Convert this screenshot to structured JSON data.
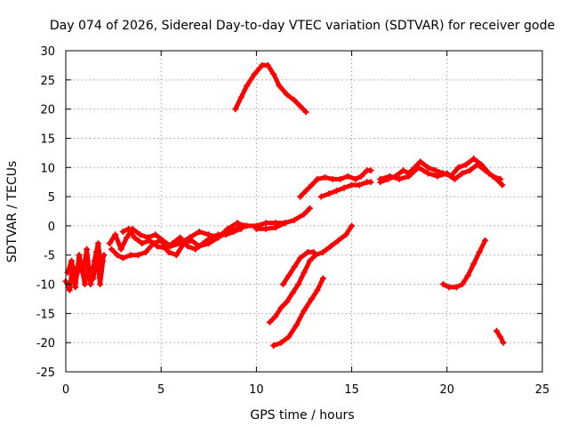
{
  "chart_data": {
    "type": "line",
    "title": "Day 074 of 2026, Sidereal Day-to-day VTEC variation (SDTVAR) for receiver gode",
    "xlabel": "GPS time / hours",
    "ylabel": "SDTVAR / TECUs",
    "xlim": [
      0,
      25
    ],
    "ylim": [
      -25,
      30
    ],
    "xticks": [
      0,
      5,
      10,
      15,
      20,
      25
    ],
    "yticks": [
      -25,
      -20,
      -15,
      -10,
      -5,
      0,
      5,
      10,
      15,
      20,
      25,
      30
    ],
    "grid": true,
    "legend": "none",
    "color": "#ff0000",
    "marker": "plus",
    "series": [
      {
        "points": [
          [
            0.0,
            -9.5
          ],
          [
            0.2,
            -11
          ],
          [
            0.35,
            -7
          ],
          [
            0.5,
            -10.5
          ],
          [
            0.7,
            -5
          ],
          [
            0.9,
            -8
          ],
          [
            1.1,
            -4
          ],
          [
            1.3,
            -10
          ],
          [
            1.5,
            -6
          ],
          [
            1.7,
            -3
          ],
          [
            1.85,
            -7
          ],
          [
            2.0,
            -5
          ]
        ]
      },
      {
        "points": [
          [
            0.1,
            -8
          ],
          [
            0.3,
            -6
          ],
          [
            0.5,
            -9
          ],
          [
            0.8,
            -6.5
          ],
          [
            1.0,
            -10
          ],
          [
            1.2,
            -7
          ],
          [
            1.45,
            -9
          ],
          [
            1.6,
            -4.5
          ],
          [
            1.8,
            -10
          ],
          [
            1.95,
            -6
          ]
        ]
      },
      {
        "points": [
          [
            2.3,
            -3
          ],
          [
            2.6,
            -1.5
          ],
          [
            2.9,
            -4
          ],
          [
            3.2,
            -2
          ],
          [
            3.5,
            -0.5
          ],
          [
            3.9,
            -1.5
          ],
          [
            4.3,
            -2
          ],
          [
            4.7,
            -1.5
          ],
          [
            5.1,
            -2.5
          ],
          [
            5.5,
            -3.5
          ],
          [
            6.0,
            -3
          ],
          [
            6.5,
            -2
          ],
          [
            7.0,
            -1
          ],
          [
            7.5,
            -1.5
          ],
          [
            8.0,
            -2
          ],
          [
            8.5,
            -1
          ],
          [
            9.0,
            -0.5
          ],
          [
            9.5,
            0
          ],
          [
            10.0,
            0
          ],
          [
            10.5,
            0.5
          ],
          [
            11.0,
            0.5
          ],
          [
            11.5,
            0.5
          ]
        ]
      },
      {
        "points": [
          [
            2.4,
            -4
          ],
          [
            2.7,
            -5
          ],
          [
            3.0,
            -5.5
          ],
          [
            3.4,
            -5
          ],
          [
            3.8,
            -5
          ],
          [
            4.2,
            -4.5
          ],
          [
            4.6,
            -3
          ],
          [
            5.0,
            -2.5
          ],
          [
            5.4,
            -4.5
          ],
          [
            5.8,
            -5
          ],
          [
            6.2,
            -3
          ],
          [
            6.6,
            -2.5
          ],
          [
            7.0,
            -3.5
          ],
          [
            7.5,
            -3
          ],
          [
            8.0,
            -2
          ],
          [
            8.5,
            -0.5
          ],
          [
            9.0,
            0.5
          ],
          [
            9.4,
            0
          ]
        ]
      },
      {
        "points": [
          [
            3.0,
            -1
          ],
          [
            3.3,
            -0.5
          ],
          [
            3.6,
            -2
          ],
          [
            4.0,
            -3
          ],
          [
            4.4,
            -2.5
          ],
          [
            4.8,
            -3.5
          ],
          [
            5.2,
            -3.8
          ],
          [
            5.6,
            -3
          ],
          [
            6.0,
            -2
          ],
          [
            6.4,
            -3.5
          ],
          [
            6.8,
            -4
          ],
          [
            7.2,
            -3
          ],
          [
            7.6,
            -2
          ],
          [
            8.0,
            -1.5
          ],
          [
            8.4,
            -1.5
          ],
          [
            8.8,
            -1
          ],
          [
            9.2,
            -0.5
          ]
        ]
      },
      {
        "points": [
          [
            10.0,
            -0.5
          ],
          [
            10.5,
            -0.5
          ],
          [
            11.0,
            -0.3
          ],
          [
            11.5,
            0.5
          ],
          [
            12.0,
            1
          ],
          [
            12.5,
            2
          ],
          [
            12.8,
            3
          ]
        ]
      },
      {
        "points": [
          [
            8.9,
            20
          ],
          [
            9.2,
            22
          ],
          [
            9.5,
            24
          ],
          [
            9.9,
            26
          ],
          [
            10.3,
            27.5
          ],
          [
            10.6,
            27.5
          ],
          [
            10.9,
            26
          ],
          [
            11.2,
            24
          ],
          [
            11.6,
            22.5
          ],
          [
            12.0,
            21.5
          ],
          [
            12.3,
            20.5
          ],
          [
            12.6,
            19.5
          ]
        ]
      },
      {
        "points": [
          [
            12.3,
            5
          ],
          [
            12.6,
            6
          ],
          [
            12.9,
            7
          ],
          [
            13.2,
            8
          ],
          [
            13.6,
            8.3
          ],
          [
            14.0,
            8
          ],
          [
            14.4,
            8
          ],
          [
            14.8,
            8.5
          ],
          [
            15.2,
            8
          ],
          [
            15.5,
            8.5
          ],
          [
            15.8,
            9.5
          ],
          [
            16.0,
            9.5
          ]
        ]
      },
      {
        "points": [
          [
            13.4,
            5
          ],
          [
            13.8,
            5.5
          ],
          [
            14.2,
            6
          ],
          [
            14.6,
            6.5
          ],
          [
            15.0,
            7
          ],
          [
            15.4,
            7
          ],
          [
            15.8,
            7.5
          ],
          [
            16.0,
            7.5
          ]
        ]
      },
      {
        "points": [
          [
            16.5,
            7.5
          ],
          [
            16.9,
            8
          ],
          [
            17.3,
            8.5
          ],
          [
            17.7,
            9.5
          ],
          [
            18.0,
            9
          ],
          [
            18.3,
            10
          ],
          [
            18.6,
            11
          ],
          [
            19.0,
            10
          ],
          [
            19.4,
            9.5
          ],
          [
            19.8,
            9
          ],
          [
            20.2,
            8.5
          ],
          [
            20.6,
            10
          ],
          [
            21.0,
            10.5
          ],
          [
            21.4,
            11.5
          ],
          [
            21.8,
            10.5
          ],
          [
            22.2,
            9
          ],
          [
            22.6,
            8
          ],
          [
            22.9,
            7
          ]
        ]
      },
      {
        "points": [
          [
            16.5,
            8
          ],
          [
            17.0,
            8.5
          ],
          [
            17.5,
            8
          ],
          [
            18.0,
            8.5
          ],
          [
            18.5,
            10
          ],
          [
            19.0,
            9
          ],
          [
            19.5,
            8.5
          ],
          [
            20.0,
            9
          ],
          [
            20.4,
            8
          ],
          [
            20.8,
            9
          ],
          [
            21.2,
            9.5
          ],
          [
            21.6,
            10.5
          ],
          [
            22.0,
            9.5
          ],
          [
            22.4,
            8.5
          ],
          [
            22.8,
            8
          ]
        ]
      },
      {
        "points": [
          [
            10.7,
            -16.5
          ],
          [
            11.0,
            -15.5
          ],
          [
            11.3,
            -14
          ],
          [
            11.6,
            -13
          ],
          [
            11.9,
            -11.5
          ],
          [
            12.2,
            -10
          ],
          [
            12.5,
            -8
          ],
          [
            12.8,
            -6
          ],
          [
            13.1,
            -5
          ],
          [
            13.5,
            -4.5
          ],
          [
            13.9,
            -3.5
          ],
          [
            14.3,
            -2.5
          ],
          [
            14.7,
            -1.5
          ],
          [
            15.0,
            0
          ]
        ]
      },
      {
        "points": [
          [
            11.4,
            -10
          ],
          [
            11.7,
            -8.5
          ],
          [
            12.0,
            -7
          ],
          [
            12.3,
            -5.5
          ],
          [
            12.7,
            -4.5
          ],
          [
            13.0,
            -4.5
          ]
        ]
      },
      {
        "points": [
          [
            10.9,
            -20.5
          ],
          [
            11.3,
            -20
          ],
          [
            11.7,
            -19
          ],
          [
            12.1,
            -17
          ],
          [
            12.5,
            -14.5
          ],
          [
            12.9,
            -12.5
          ],
          [
            13.2,
            -11
          ],
          [
            13.5,
            -9
          ]
        ]
      },
      {
        "points": [
          [
            19.8,
            -10
          ],
          [
            20.1,
            -10.5
          ],
          [
            20.5,
            -10.5
          ],
          [
            20.8,
            -10
          ],
          [
            21.1,
            -8.5
          ],
          [
            21.4,
            -6.5
          ],
          [
            21.7,
            -4.5
          ],
          [
            22.0,
            -2.5
          ]
        ]
      },
      {
        "points": [
          [
            22.6,
            -18
          ],
          [
            22.8,
            -19
          ],
          [
            22.95,
            -20
          ]
        ]
      }
    ]
  }
}
